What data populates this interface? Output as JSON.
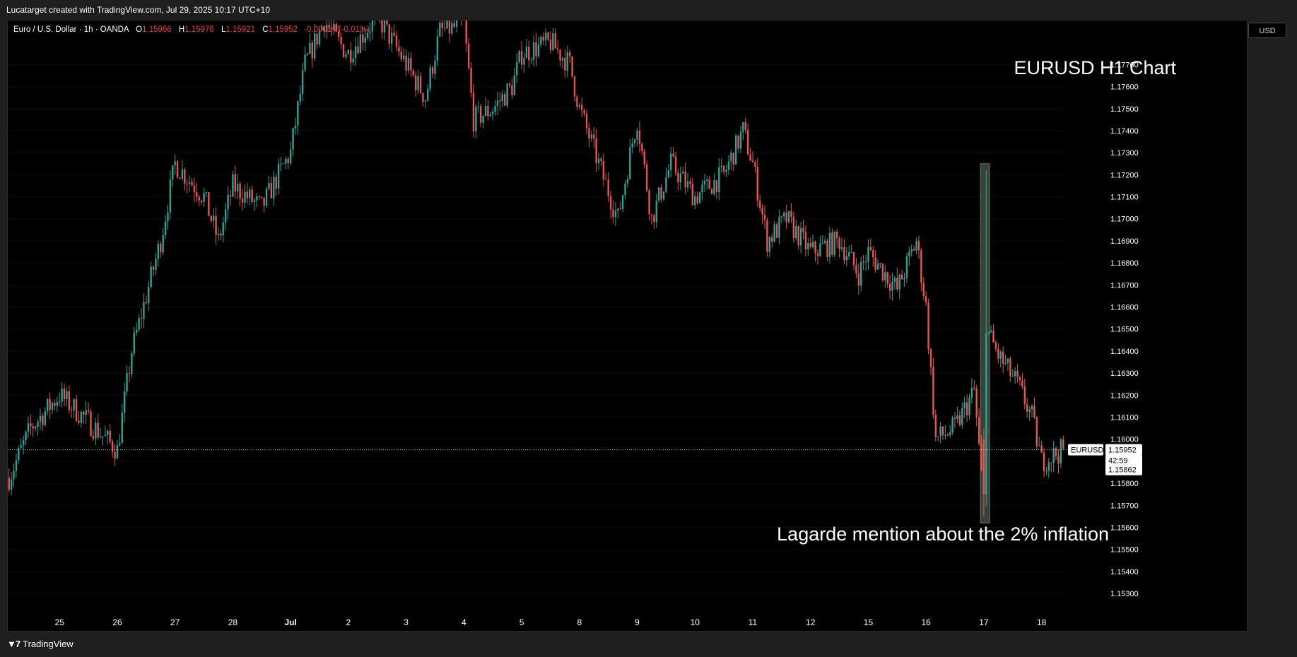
{
  "header": {
    "credit": "Lucatarget created with TradingView.com, Jul 29, 2025 10:17 UTC+10"
  },
  "legend": {
    "symbol": "Euro / U.S. Dollar · 1h · OANDA",
    "open_label": "O",
    "open": "1.15966",
    "high_label": "H",
    "high": "1.15976",
    "low_label": "L",
    "low": "1.15921",
    "close_label": "C",
    "close": "1.15952",
    "change": "-0.00014 (-0.01%)"
  },
  "toolbar": {
    "currency_button": "USD"
  },
  "footer": {
    "brand": "TradingView"
  },
  "colors": {
    "up": "#26a69a",
    "down": "#ef5350",
    "background": "#000000",
    "highlight": "#4a5a4a"
  },
  "chart_data": {
    "type": "candlestick",
    "title": "EURUSD H1 Chart",
    "annotation": "Lagarde mention about the 2% inflation",
    "symbol_label": "EURUSD",
    "last_price": "1.15952",
    "countdown": "42:59",
    "secondary_price": "1.15862",
    "ylim": [
      1.1522,
      1.179
    ],
    "y_ticks": [
      "1.17700",
      "1.17600",
      "1.17500",
      "1.17400",
      "1.17300",
      "1.17200",
      "1.17100",
      "1.17000",
      "1.16900",
      "1.16800",
      "1.16700",
      "1.16600",
      "1.16500",
      "1.16400",
      "1.16300",
      "1.16200",
      "1.16100",
      "1.16000",
      "1.15900",
      "1.15800",
      "1.15700",
      "1.15600",
      "1.15500",
      "1.15400",
      "1.15300"
    ],
    "x_ticks": [
      "25",
      "26",
      "27",
      "28",
      "Jul",
      "2",
      "3",
      "4",
      "5",
      "8",
      "9",
      "10",
      "11",
      "12",
      "15",
      "16",
      "17",
      "18"
    ],
    "x_range": [
      "Jun 24 03:00",
      "Jul 18 09:00"
    ],
    "highlight_period": {
      "start": "Jul 17 00:00",
      "end": "Jul 17 01:00",
      "price_low": 1.1562,
      "price_high": 1.1725
    },
    "trend_points": [
      {
        "t": "Jun 24 00:00",
        "p": 1.1575
      },
      {
        "t": "Jun 24 12:00",
        "p": 1.1605
      },
      {
        "t": "Jun 25 00:00",
        "p": 1.162
      },
      {
        "t": "Jun 25 12:00",
        "p": 1.1608
      },
      {
        "t": "Jun 26 00:00",
        "p": 1.1595
      },
      {
        "t": "Jun 26 06:00",
        "p": 1.164
      },
      {
        "t": "Jun 26 12:00",
        "p": 1.1665
      },
      {
        "t": "Jun 26 18:00",
        "p": 1.169
      },
      {
        "t": "Jun 27 00:00",
        "p": 1.1725
      },
      {
        "t": "Jun 27 12:00",
        "p": 1.171
      },
      {
        "t": "Jun 27 18:00",
        "p": 1.169
      },
      {
        "t": "Jun 28 00:00",
        "p": 1.1715
      },
      {
        "t": "Jun 28 12:00",
        "p": 1.1705
      },
      {
        "t": "Jun 28 20:00",
        "p": 1.1722
      },
      {
        "t": "Jul 1 00:00",
        "p": 1.173
      },
      {
        "t": "Jul 1 06:00",
        "p": 1.177
      },
      {
        "t": "Jul 1 14:00",
        "p": 1.179
      },
      {
        "t": "Jul 1 20:00",
        "p": 1.178
      },
      {
        "t": "Jul 2 00:00",
        "p": 1.1775
      },
      {
        "t": "Jul 2 12:00",
        "p": 1.1792
      },
      {
        "t": "Jul 3 00:00",
        "p": 1.177
      },
      {
        "t": "Jul 3 08:00",
        "p": 1.1755
      },
      {
        "t": "Jul 3 14:00",
        "p": 1.1785
      },
      {
        "t": "Jul 4 00:00",
        "p": 1.1788
      },
      {
        "t": "Jul 4 04:00",
        "p": 1.1745
      },
      {
        "t": "Jul 4 12:00",
        "p": 1.175
      },
      {
        "t": "Jul 4 20:00",
        "p": 1.176
      },
      {
        "t": "Jul 5 00:00",
        "p": 1.1775
      },
      {
        "t": "Jul 5 12:00",
        "p": 1.178
      },
      {
        "t": "Jul 5 20:00",
        "p": 1.177
      },
      {
        "t": "Jul 8 00:00",
        "p": 1.175
      },
      {
        "t": "Jul 8 08:00",
        "p": 1.1725
      },
      {
        "t": "Jul 8 16:00",
        "p": 1.17
      },
      {
        "t": "Jul 8 22:00",
        "p": 1.1735
      },
      {
        "t": "Jul 9 00:00",
        "p": 1.1745
      },
      {
        "t": "Jul 9 06:00",
        "p": 1.17
      },
      {
        "t": "Jul 9 14:00",
        "p": 1.1725
      },
      {
        "t": "Jul 10 00:00",
        "p": 1.171
      },
      {
        "t": "Jul 10 12:00",
        "p": 1.172
      },
      {
        "t": "Jul 10 20:00",
        "p": 1.174
      },
      {
        "t": "Jul 11 00:00",
        "p": 1.1725
      },
      {
        "t": "Jul 11 06:00",
        "p": 1.169
      },
      {
        "t": "Jul 11 14:00",
        "p": 1.17
      },
      {
        "t": "Jul 12 00:00",
        "p": 1.1685
      },
      {
        "t": "Jul 12 12:00",
        "p": 1.169
      },
      {
        "t": "Jul 12 20:00",
        "p": 1.1675
      },
      {
        "t": "Jul 15 00:00",
        "p": 1.1685
      },
      {
        "t": "Jul 15 12:00",
        "p": 1.1668
      },
      {
        "t": "Jul 15 20:00",
        "p": 1.169
      },
      {
        "t": "Jul 16 00:00",
        "p": 1.166
      },
      {
        "t": "Jul 16 04:00",
        "p": 1.16
      },
      {
        "t": "Jul 16 12:00",
        "p": 1.1605
      },
      {
        "t": "Jul 16 20:00",
        "p": 1.1622
      },
      {
        "t": "Jul 17 00:00",
        "p": 1.157
      },
      {
        "t": "Jul 17 01:00",
        "p": 1.165
      },
      {
        "t": "Jul 17 06:00",
        "p": 1.1638
      },
      {
        "t": "Jul 17 14:00",
        "p": 1.1625
      },
      {
        "t": "Jul 17 20:00",
        "p": 1.161
      },
      {
        "t": "Jul 18 00:00",
        "p": 1.159
      },
      {
        "t": "Jul 18 09:00",
        "p": 1.1595
      }
    ]
  }
}
